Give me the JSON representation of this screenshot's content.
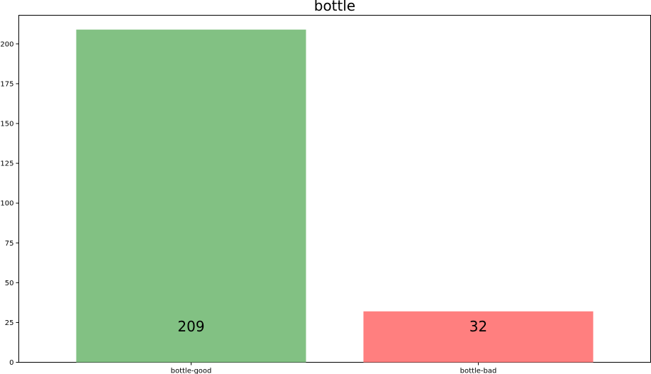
{
  "chart_data": {
    "type": "bar",
    "title": "bottle",
    "xlabel": "",
    "ylabel": "",
    "categories": [
      "bottle-good",
      "bottle-bad"
    ],
    "values": [
      209,
      32
    ],
    "data_labels": [
      "209",
      "32"
    ],
    "colors": [
      "#82c183",
      "#ff7f7f"
    ],
    "ylim": [
      0,
      218
    ],
    "yticks": [
      0,
      25,
      50,
      75,
      100,
      125,
      150,
      175,
      200
    ],
    "grid": false,
    "legend": "none"
  }
}
